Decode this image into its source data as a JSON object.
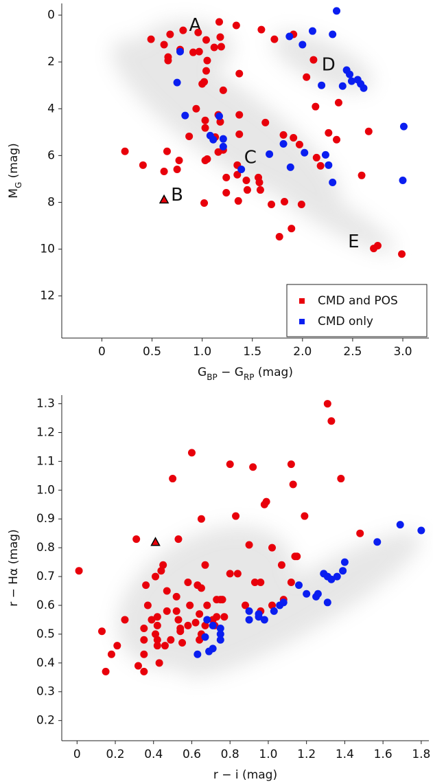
{
  "chart_data": [
    {
      "type": "scatter",
      "xlabel_parts": [
        {
          "text": "G"
        },
        {
          "text": "BP",
          "sub": true
        },
        {
          "text": " − G"
        },
        {
          "text": "RP",
          "sub": true
        },
        {
          "text": " (mag)"
        }
      ],
      "ylabel_parts": [
        {
          "text": "M"
        },
        {
          "text": "G",
          "sub": true
        },
        {
          "text": " (mag)"
        }
      ],
      "xlim": [
        -0.4,
        3.26
      ],
      "ylim": [
        13.8,
        -0.5
      ],
      "xticks": [
        0,
        0.5,
        {
          "value": 1,
          "label": "1.0"
        },
        1.5,
        {
          "value": 2,
          "label": "2.0"
        },
        2.5,
        {
          "value": 3,
          "label": "3.0"
        }
      ],
      "yticks": [
        0,
        2,
        4,
        6,
        8,
        10,
        12
      ],
      "legend": "lower right",
      "annotations": [
        {
          "text": "A",
          "x": 0.93,
          "y": 0.45
        },
        {
          "text": "B",
          "x": 0.75,
          "y": 7.7
        },
        {
          "text": "C",
          "x": 1.48,
          "y": 6.1
        },
        {
          "text": "D",
          "x": 2.26,
          "y": 2.15
        },
        {
          "text": "E",
          "x": 2.51,
          "y": 9.7
        }
      ],
      "series": [
        {
          "name": "CMD and POS",
          "color": "#e8000b",
          "marker": "circle",
          "x": [
            0.49,
            0.68,
            0.62,
            0.66,
            0.66,
            0.78,
            0.81,
            0.96,
            1.17,
            1.34,
            1.04,
            1.18,
            1.19,
            1.12,
            0.97,
            0.91,
            1.05,
            1.04,
            1.02,
            1.0,
            1.37,
            1.21,
            1.59,
            1.72,
            1.91,
            2.11,
            2.04,
            2.13,
            2.36,
            0.94,
            1.03,
            1.18,
            1.16,
            1.03,
            0.87,
            1.13,
            1.37,
            1.37,
            1.63,
            1.81,
            1.91,
            1.97,
            2.26,
            2.34,
            2.66,
            0.23,
            0.65,
            0.77,
            1.03,
            1.05,
            1.16,
            1.21,
            1.35,
            1.24,
            1.35,
            1.44,
            1.56,
            1.57,
            1.45,
            1.58,
            2.14,
            2.18,
            0.41,
            0.75,
            0.62,
            1.24,
            1.36,
            1.02,
            1.69,
            1.82,
            1.99,
            1.89,
            1.77,
            2.59,
            2.71,
            2.75,
            2.99
          ],
          "values": [
            1.03,
            0.82,
            1.26,
            1.79,
            1.94,
            1.47,
            0.65,
            0.74,
            0.29,
            0.44,
            1.06,
            0.94,
            1.35,
            1.38,
            1.56,
            1.59,
            1.94,
            2.38,
            2.85,
            2.94,
            2.5,
            3.21,
            0.62,
            1.03,
            0.82,
            1.91,
            2.65,
            3.91,
            3.74,
            4.0,
            4.5,
            4.56,
            4.26,
            4.82,
            5.18,
            5.21,
            4.26,
            5.09,
            4.59,
            5.12,
            5.24,
            5.53,
            5.03,
            5.32,
            4.97,
            5.82,
            5.82,
            6.21,
            6.21,
            6.15,
            5.85,
            5.76,
            6.41,
            6.94,
            6.82,
            7.06,
            6.94,
            7.15,
            7.47,
            7.47,
            6.09,
            6.44,
            6.41,
            6.59,
            6.68,
            7.59,
            7.94,
            8.03,
            8.09,
            7.97,
            8.09,
            9.12,
            9.47,
            6.85,
            9.97,
            9.85,
            10.21
          ]
        },
        {
          "name": "CMD only",
          "color": "#0a1ef0",
          "marker": "circle",
          "x": [
            2.34,
            2.3,
            2.1,
            1.87,
            2.0,
            0.78,
            0.75,
            2.44,
            2.47,
            2.49,
            2.55,
            2.58,
            2.61,
            2.19,
            2.4,
            0.83,
            1.17,
            1.08,
            1.11,
            1.21,
            1.21,
            1.39,
            1.67,
            1.81,
            2.02,
            2.23,
            2.26,
            1.88,
            2.3,
            3.01,
            3.0
          ],
          "values": [
            -0.18,
            0.82,
            0.68,
            0.91,
            1.26,
            1.56,
            2.88,
            2.35,
            2.53,
            2.82,
            2.76,
            2.94,
            3.12,
            3.0,
            3.03,
            4.29,
            4.32,
            5.15,
            5.32,
            5.29,
            5.62,
            6.59,
            5.94,
            5.5,
            5.88,
            5.97,
            6.41,
            6.5,
            7.15,
            4.76,
            7.06
          ]
        },
        {
          "color": "#e8000b",
          "marker": "triangle",
          "x": [
            0.62
          ],
          "values": [
            7.88
          ]
        }
      ]
    },
    {
      "type": "scatter",
      "xlabel_parts": [
        {
          "text": "r − i (mag)"
        }
      ],
      "ylabel_parts": [
        {
          "text": "r − Hα (mag)"
        }
      ],
      "xlim": [
        -0.08,
        1.84
      ],
      "ylim": [
        0.13,
        1.33
      ],
      "xticks": [
        0,
        0.2,
        0.4,
        0.6,
        0.8,
        {
          "value": 1,
          "label": "1.0"
        },
        1.2,
        1.4,
        1.6,
        1.8
      ],
      "yticks": [
        0.2,
        0.3,
        0.4,
        0.5,
        0.6,
        0.7,
        0.8,
        0.9,
        {
          "value": 1,
          "label": "1.0"
        },
        1.1,
        1.2,
        1.3
      ],
      "series": [
        {
          "color": "#e8000b",
          "marker": "circle",
          "x": [
            0.01,
            1.31,
            1.33,
            0.6,
            0.8,
            0.92,
            1.12,
            0.5,
            1.38,
            1.13,
            0.99,
            0.98,
            1.19,
            0.83,
            0.65,
            1.48,
            0.31,
            0.53,
            0.9,
            1.02,
            0.45,
            0.41,
            0.67,
            1.07,
            1.14,
            1.15,
            0.8,
            0.84,
            0.36,
            0.44,
            0.96,
            0.93,
            1.12,
            0.37,
            0.58,
            0.63,
            0.65,
            0.75,
            0.76,
            0.47,
            0.52,
            1.08,
            0.68,
            0.73,
            1.02,
            0.39,
            0.59,
            0.73,
            0.88,
            0.47,
            0.71,
            0.77,
            0.96,
            0.35,
            0.52,
            0.64,
            0.42,
            0.53,
            0.62,
            0.67,
            0.42,
            0.58,
            0.72,
            0.54,
            0.13,
            0.25,
            0.35,
            0.41,
            0.54,
            0.65,
            0.42,
            0.55,
            0.49,
            0.64,
            0.21,
            0.42,
            0.18,
            0.35,
            0.46,
            0.32,
            0.43,
            0.15,
            0.35
          ],
          "values": [
            0.72,
            1.3,
            1.24,
            1.13,
            1.09,
            1.08,
            1.09,
            1.04,
            1.04,
            1.02,
            0.96,
            0.95,
            0.91,
            0.91,
            0.9,
            0.85,
            0.83,
            0.83,
            0.81,
            0.8,
            0.74,
            0.7,
            0.74,
            0.74,
            0.77,
            0.77,
            0.71,
            0.71,
            0.67,
            0.72,
            0.68,
            0.68,
            0.68,
            0.6,
            0.68,
            0.67,
            0.66,
            0.62,
            0.62,
            0.65,
            0.63,
            0.62,
            0.6,
            0.62,
            0.6,
            0.55,
            0.6,
            0.56,
            0.6,
            0.58,
            0.55,
            0.56,
            0.58,
            0.52,
            0.58,
            0.57,
            0.56,
            0.55,
            0.54,
            0.53,
            0.53,
            0.53,
            0.53,
            0.52,
            0.51,
            0.55,
            0.48,
            0.5,
            0.51,
            0.5,
            0.48,
            0.47,
            0.48,
            0.48,
            0.46,
            0.46,
            0.43,
            0.43,
            0.46,
            0.39,
            0.4,
            0.37,
            0.37
          ]
        },
        {
          "color": "#0a1ef0",
          "marker": "circle",
          "x": [
            1.8,
            1.69,
            1.57,
            1.4,
            1.39,
            1.36,
            1.33,
            1.29,
            1.31,
            1.16,
            1.2,
            1.26,
            1.25,
            1.31,
            1.06,
            1.08,
            1.03,
            0.95,
            0.9,
            0.98,
            0.95,
            0.9,
            0.75,
            0.68,
            0.71,
            0.67,
            0.75,
            0.69,
            0.71,
            0.63,
            0.75
          ],
          "values": [
            0.86,
            0.88,
            0.82,
            0.75,
            0.72,
            0.7,
            0.69,
            0.71,
            0.61,
            0.67,
            0.64,
            0.64,
            0.63,
            0.7,
            0.6,
            0.61,
            0.58,
            0.57,
            0.58,
            0.55,
            0.56,
            0.55,
            0.52,
            0.55,
            0.53,
            0.49,
            0.48,
            0.44,
            0.45,
            0.43,
            0.5
          ]
        },
        {
          "color": "#e8000b",
          "marker": "triangle",
          "x": [
            0.41
          ],
          "values": [
            0.82
          ]
        }
      ]
    }
  ]
}
